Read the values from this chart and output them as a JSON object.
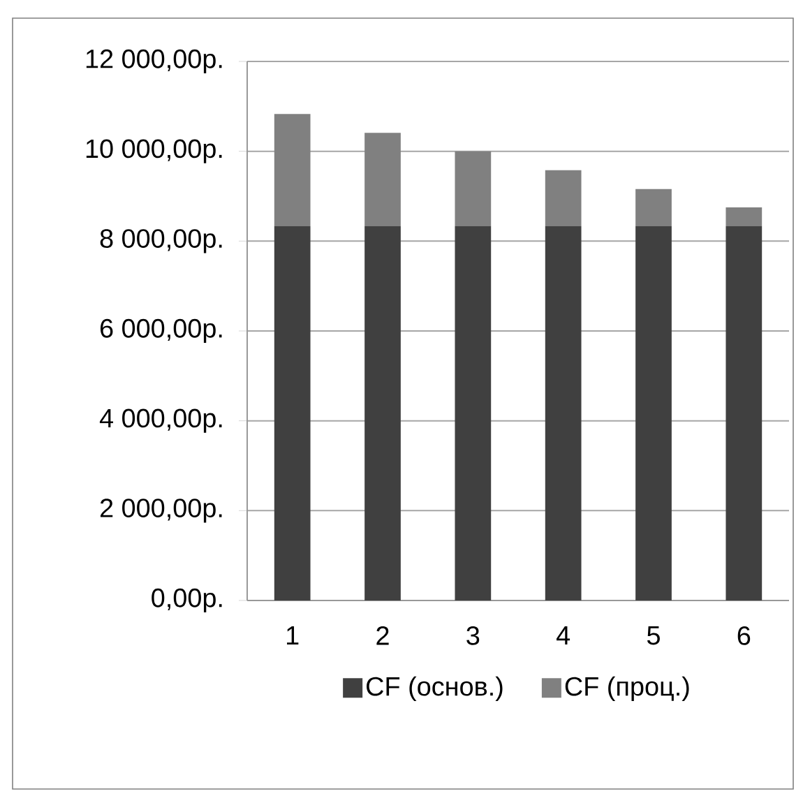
{
  "chart_data": {
    "type": "bar",
    "stacked": true,
    "categories": [
      "1",
      "2",
      "3",
      "4",
      "5",
      "6"
    ],
    "series": [
      {
        "name": "CF (основ.)",
        "color": "#404040",
        "values": [
          8330,
          8330,
          8330,
          8330,
          8330,
          8330
        ]
      },
      {
        "name": "CF (проц.)",
        "color": "#808080",
        "values": [
          2500,
          2080,
          1670,
          1250,
          830,
          420
        ]
      }
    ],
    "ylim": [
      0,
      12000
    ],
    "yticks": [
      {
        "value": 0,
        "label": "0,00р."
      },
      {
        "value": 2000,
        "label": "2 000,00р."
      },
      {
        "value": 4000,
        "label": "4 000,00р."
      },
      {
        "value": 6000,
        "label": "6 000,00р."
      },
      {
        "value": 8000,
        "label": "8 000,00р."
      },
      {
        "value": 10000,
        "label": "10 000,00р."
      },
      {
        "value": 12000,
        "label": "12 000,00р."
      }
    ],
    "grid": "y",
    "legend": "bottom"
  }
}
